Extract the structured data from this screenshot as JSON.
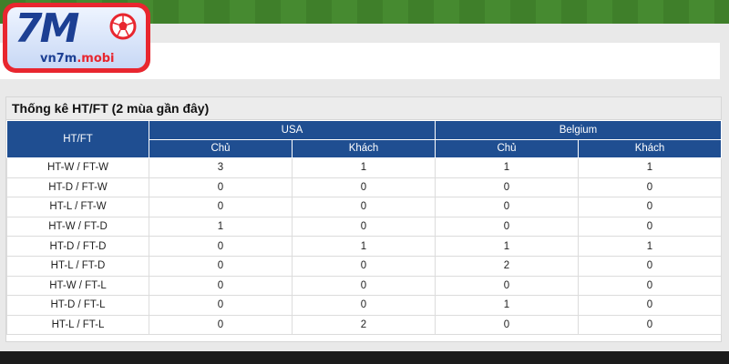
{
  "logo": {
    "main": "7M",
    "sub_prefix": "vn7m",
    "sub_suffix": ".mobi",
    "colors": {
      "frame": "#e8262f",
      "text": "#1c3f93"
    }
  },
  "panel": {
    "title": "Thống kê HT/FT (2 mùa gần đây)",
    "row_header": "HT/FT",
    "teams": [
      {
        "name": "USA",
        "sub": [
          "Chủ",
          "Khách"
        ]
      },
      {
        "name": "Belgium",
        "sub": [
          "Chủ",
          "Khách"
        ]
      }
    ],
    "rows": [
      {
        "label": "HT-W / FT-W",
        "values": [
          "3",
          "1",
          "1",
          "1"
        ]
      },
      {
        "label": "HT-D / FT-W",
        "values": [
          "0",
          "0",
          "0",
          "0"
        ]
      },
      {
        "label": "HT-L / FT-W",
        "values": [
          "0",
          "0",
          "0",
          "0"
        ]
      },
      {
        "label": "HT-W / FT-D",
        "values": [
          "1",
          "0",
          "0",
          "0"
        ]
      },
      {
        "label": "HT-D / FT-D",
        "values": [
          "0",
          "1",
          "1",
          "1"
        ]
      },
      {
        "label": "HT-L / FT-D",
        "values": [
          "0",
          "0",
          "2",
          "0"
        ]
      },
      {
        "label": "HT-W / FT-L",
        "values": [
          "0",
          "0",
          "0",
          "0"
        ]
      },
      {
        "label": "HT-D / FT-L",
        "values": [
          "0",
          "0",
          "1",
          "0"
        ]
      },
      {
        "label": "HT-L / FT-L",
        "values": [
          "0",
          "2",
          "0",
          "0"
        ]
      }
    ],
    "colors": {
      "header_bg": "#1f4e91",
      "header_text": "#ffffff"
    }
  }
}
